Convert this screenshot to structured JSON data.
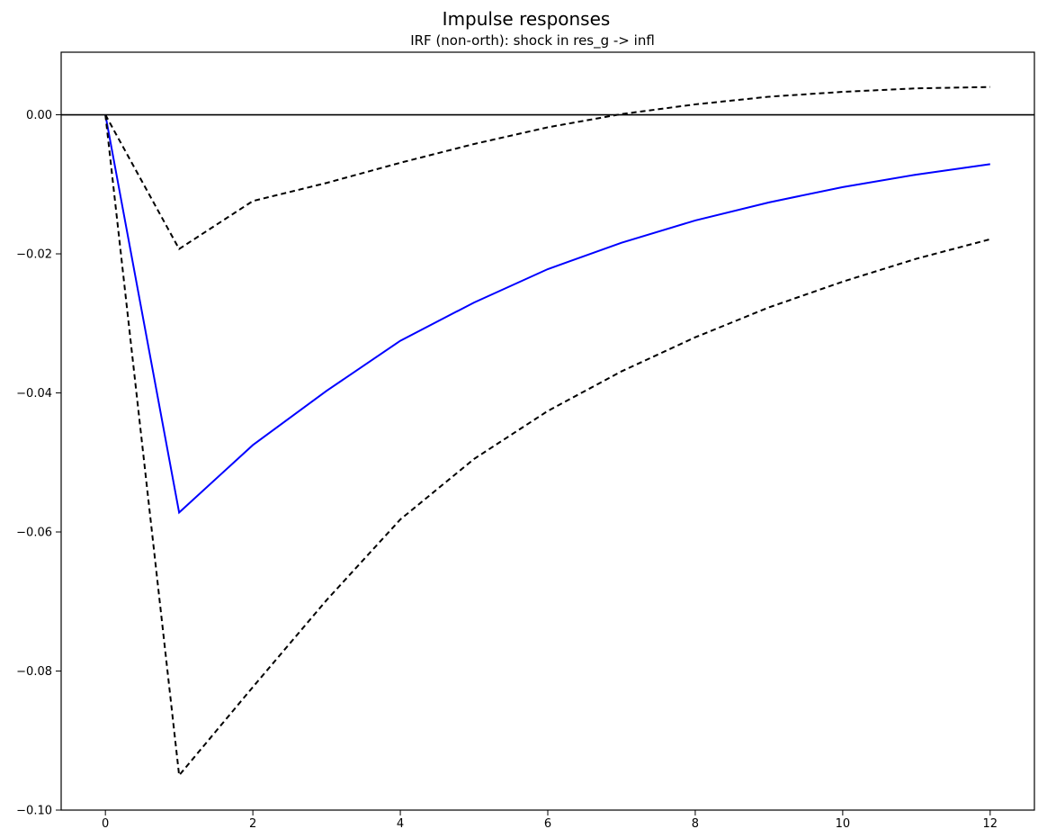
{
  "figure": {
    "suptitle": "Impulse responses"
  },
  "chart_data": {
    "type": "line",
    "title": "IRF (non-orth): shock in res_g -> infl",
    "xlabel": "",
    "ylabel": "",
    "xlim": [
      -0.6,
      12.6
    ],
    "ylim": [
      -0.1,
      0.009
    ],
    "x_ticks": [
      0,
      2,
      4,
      6,
      8,
      10,
      12
    ],
    "y_ticks": [
      0.0,
      -0.02,
      -0.04,
      -0.06,
      -0.08,
      -0.1
    ],
    "x_tick_labels": [
      "0",
      "2",
      "4",
      "6",
      "8",
      "10",
      "12"
    ],
    "y_tick_labels": [
      "0.00",
      "−0.02",
      "−0.04",
      "−0.06",
      "−0.08",
      "−0.10"
    ],
    "grid": false,
    "zero_line": 0,
    "x": [
      0,
      1,
      2,
      3,
      4,
      5,
      6,
      7,
      8,
      9,
      10,
      11,
      12
    ],
    "series": [
      {
        "role": "irf",
        "color": "#0000ff",
        "style": "solid",
        "values": [
          0,
          -0.0572,
          -0.0475,
          -0.0397,
          -0.0325,
          -0.027,
          -0.0222,
          -0.0184,
          -0.0152,
          -0.0126,
          -0.0104,
          -0.0086,
          -0.0071
        ]
      },
      {
        "role": "upper-bound",
        "color": "#000000",
        "style": "dashed",
        "values": [
          0,
          -0.0193,
          -0.0124,
          -0.0098,
          -0.0069,
          -0.0042,
          -0.0018,
          0.0001,
          0.0015,
          0.0026,
          0.0033,
          0.0038,
          0.004
        ]
      },
      {
        "role": "lower-bound",
        "color": "#000000",
        "style": "dashed",
        "values": [
          0,
          -0.095,
          -0.0823,
          -0.0698,
          -0.0582,
          -0.0495,
          -0.0426,
          -0.0369,
          -0.032,
          -0.0277,
          -0.024,
          -0.0207,
          -0.0179
        ]
      }
    ]
  }
}
